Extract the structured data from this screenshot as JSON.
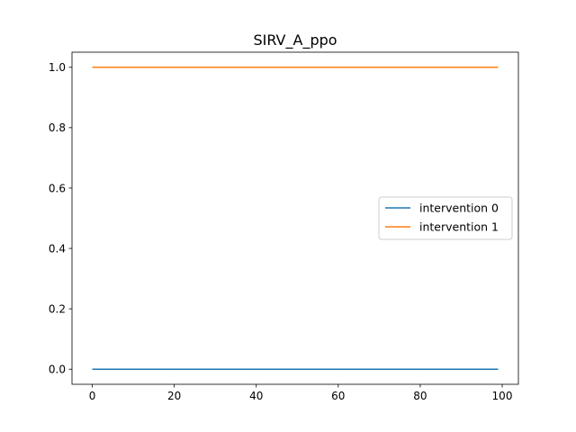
{
  "chart_data": {
    "type": "line",
    "title": "SIRV_A_ppo",
    "xlabel": "",
    "ylabel": "",
    "xlim": [
      -4.95,
      103.95
    ],
    "ylim": [
      -0.05,
      1.05
    ],
    "xticks": [
      0,
      20,
      40,
      60,
      80,
      100
    ],
    "yticks": [
      0.0,
      0.2,
      0.4,
      0.6,
      0.8,
      1.0
    ],
    "xtick_labels": [
      "0",
      "20",
      "40",
      "60",
      "80",
      "100"
    ],
    "ytick_labels": [
      "0.0",
      "0.2",
      "0.4",
      "0.6",
      "0.8",
      "1.0"
    ],
    "grid": false,
    "legend_position": "center-right",
    "series": [
      {
        "name": "intervention 0",
        "color": "#1f77b4",
        "x": [
          0,
          99
        ],
        "y": [
          0,
          0
        ]
      },
      {
        "name": "intervention 1",
        "color": "#ff7f0e",
        "x": [
          0,
          99
        ],
        "y": [
          1,
          1
        ]
      }
    ]
  }
}
